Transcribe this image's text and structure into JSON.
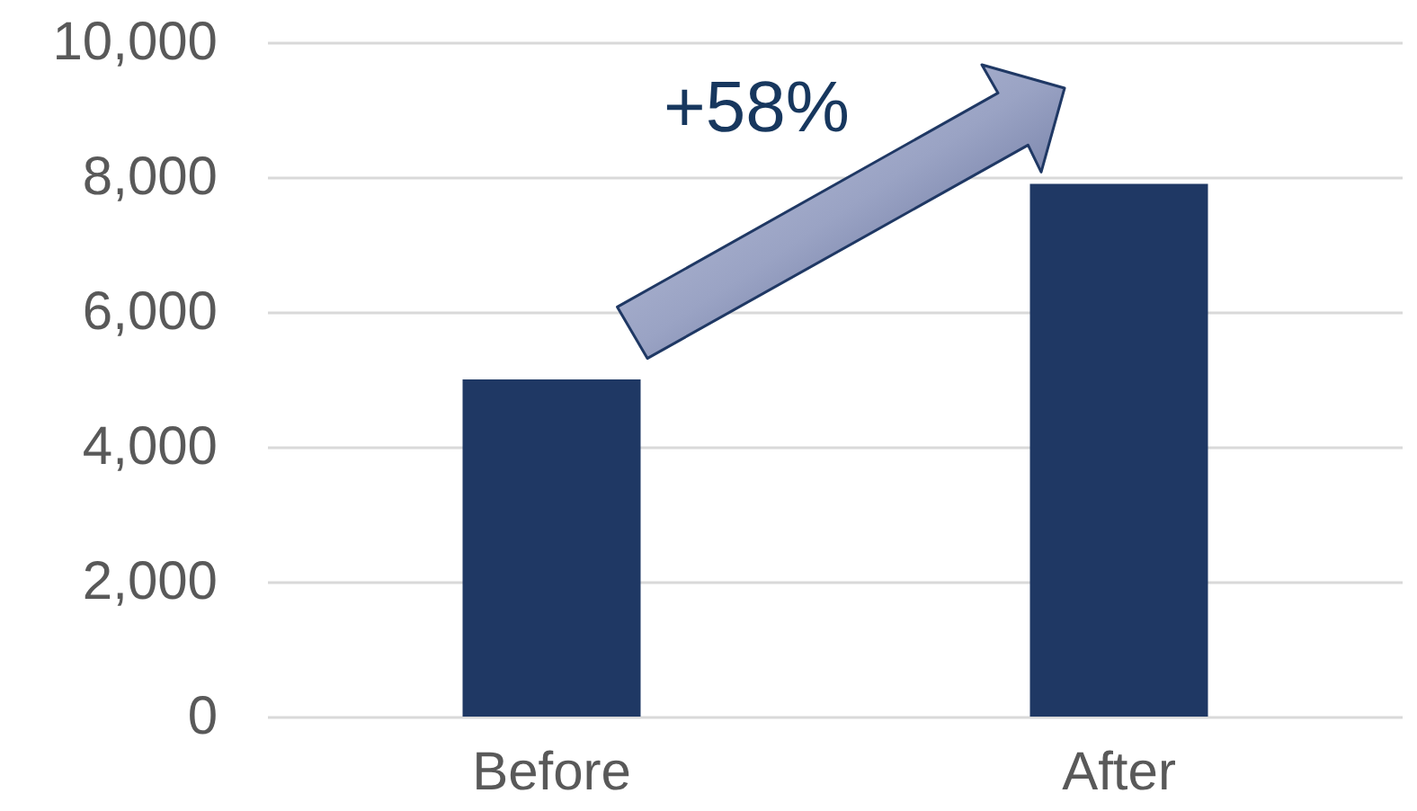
{
  "chart_data": {
    "type": "bar",
    "categories": [
      "Before",
      "After"
    ],
    "values": [
      5000,
      7900
    ],
    "color": "#1f3864",
    "ylim": [
      0,
      10000
    ],
    "yticks": [
      0,
      {
        "value": 2000,
        "label": "2,000"
      },
      {
        "value": 4000,
        "label": "4,000"
      },
      {
        "value": 6000,
        "label": "6,000"
      },
      {
        "value": 8000,
        "label": "8,000"
      },
      {
        "value": 10000,
        "label": "10,000"
      }
    ],
    "grid": "y",
    "annotations": [
      "+58%"
    ]
  }
}
